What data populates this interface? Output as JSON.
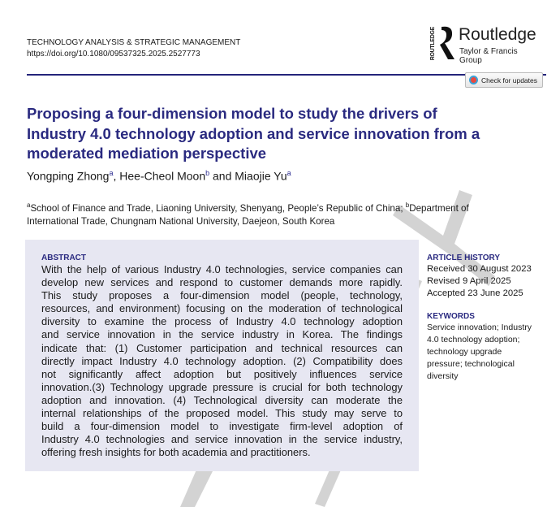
{
  "header": {
    "journal": "TECHNOLOGY ANALYSIS & STRATEGIC MANAGEMENT",
    "doi": "https://doi.org/10.1080/09537325.2025.2527773"
  },
  "publisher": {
    "name": "Routledge",
    "group": "Taylor & Francis Group",
    "spine": "ROUTLEDGE"
  },
  "check_updates": {
    "label": "Check for updates"
  },
  "title": {
    "lines": [
      "Proposing a four-dimension model to study the drivers of",
      "Industry 4.0 technology adoption and service innovation from a",
      "moderated mediation perspective"
    ]
  },
  "authors": [
    {
      "name": "Yongping Zhong",
      "aff": "a"
    },
    {
      "name": "Hee-Cheol Moon",
      "aff": "b"
    },
    {
      "name": "Miaojie Yu",
      "aff": "a"
    }
  ],
  "author_sep": {
    "comma": ", ",
    "and": " and "
  },
  "affiliations": {
    "a_mark": "a",
    "a": "School of Finance and Trade, Liaoning University, Shenyang, People’s Republic of China; ",
    "b_mark": "b",
    "b_line1": "Department of",
    "b_line2": "International Trade, Chungnam National University, Daejeon, South Korea"
  },
  "abstract": {
    "heading": "ABSTRACT",
    "lines": [
      "With the help of various Industry 4.0 technologies, service companies can",
      "develop new services and respond to customer demands more rapidly.",
      "This study proposes a four-dimension model (people, technology,",
      "resources, and environment) focusing on the moderation of technological",
      "diversity to examine the process of Industry 4.0 technology adoption",
      "and service innovation in the service industry in Korea. The findings",
      "indicate that: (1) Customer participation and technical resources can",
      "directly impact Industry 4.0 technology adoption. (2) Compatibility does",
      "not significantly affect adoption but positively influences service",
      "innovation.(3) Technology upgrade pressure is crucial for both technology",
      "adoption and innovation. (4) Technological diversity can moderate the",
      "internal relationships of the proposed model. This study may serve to",
      "build a four-dimension model to investigate firm-level adoption of",
      "Industry 4.0 technologies and service innovation in the service industry,",
      "offering fresh insights for both academia and practitioners."
    ]
  },
  "article_history": {
    "heading": "ARTICLE HISTORY",
    "received": "Received 30 August 2023",
    "revised": "Revised 9 April 2025",
    "accepted": "Accepted 23 June 2025"
  },
  "keywords": {
    "heading": "KEYWORDS",
    "lines": [
      "Service innovation; Industry",
      "4.0 technology adoption;",
      "technology upgrade",
      "pressure; technological",
      "diversity"
    ]
  },
  "colors": {
    "accent": "#2a2a80",
    "abstract_bg": "#e7e7f2",
    "watermark": "#d0d0d0"
  }
}
